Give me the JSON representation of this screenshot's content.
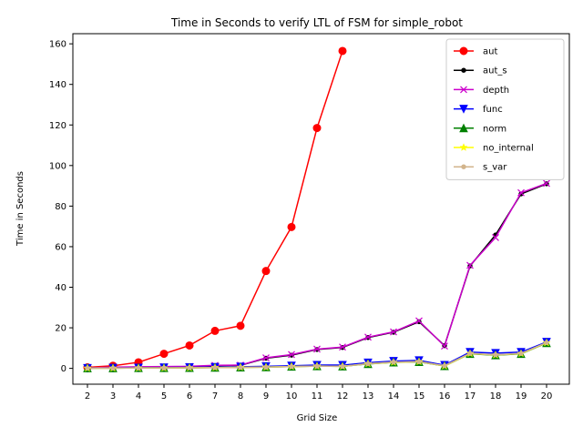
{
  "chart_data": {
    "type": "line",
    "title": "Time in Seconds to verify LTL of FSM for simple_robot",
    "xlabel": "Grid Size",
    "ylabel": "Time in Seconds",
    "categories": [
      "2",
      "3",
      "4",
      "5",
      "6",
      "7",
      "8",
      "9",
      "10",
      "11",
      "12",
      "13",
      "14",
      "15",
      "16",
      "17",
      "18",
      "19",
      "20"
    ],
    "ylim": [
      -7.8,
      165
    ],
    "yticks": [
      0,
      20,
      40,
      60,
      80,
      100,
      120,
      140,
      160
    ],
    "legend_position": "top-right",
    "grid": false,
    "series": [
      {
        "name": "aut",
        "color": "#ff0000",
        "marker": "circle",
        "values": [
          0.5,
          1.3,
          3.0,
          7.2,
          11.3,
          18.5,
          21.0,
          48.0,
          69.7,
          118.5,
          156.5,
          null,
          null,
          null,
          null,
          null,
          null,
          null,
          null
        ]
      },
      {
        "name": "aut_s",
        "color": "#000000",
        "marker": "point",
        "values": [
          0.2,
          0.5,
          0.6,
          0.7,
          0.9,
          1.3,
          1.5,
          5.0,
          6.5,
          9.3,
          10.3,
          15.2,
          17.8,
          23.0,
          11.2,
          50.5,
          65.8,
          86.0,
          91.0
        ]
      },
      {
        "name": "depth",
        "color": "#cc00cc",
        "marker": "x",
        "values": [
          0.2,
          0.6,
          0.8,
          0.9,
          1.0,
          1.5,
          1.6,
          5.2,
          6.8,
          9.5,
          10.5,
          15.4,
          18.0,
          23.4,
          11.0,
          50.8,
          64.5,
          86.6,
          91.2
        ]
      },
      {
        "name": "func",
        "color": "#0000ff",
        "marker": "triangle-down",
        "values": [
          0.1,
          0.2,
          0.3,
          0.4,
          0.5,
          0.6,
          0.8,
          1.0,
          1.3,
          1.6,
          1.6,
          2.8,
          3.6,
          3.9,
          1.6,
          8.0,
          7.5,
          8.0,
          13.0
        ]
      },
      {
        "name": "norm",
        "color": "#008000",
        "marker": "triangle-up",
        "values": [
          0.1,
          0.1,
          0.2,
          0.2,
          0.3,
          0.4,
          0.5,
          0.6,
          0.9,
          1.1,
          1.0,
          2.2,
          3.0,
          3.2,
          1.2,
          7.2,
          6.5,
          7.2,
          12.5
        ]
      },
      {
        "name": "no_internal",
        "color": "#ffff00",
        "marker": "star",
        "values": [
          0.1,
          0.1,
          0.2,
          0.2,
          0.3,
          0.4,
          0.5,
          0.6,
          0.9,
          1.1,
          1.0,
          2.3,
          3.0,
          3.3,
          1.2,
          7.3,
          6.6,
          7.3,
          12.6
        ]
      },
      {
        "name": "s_var",
        "color": "#d2b48c",
        "marker": "point",
        "values": [
          0.1,
          0.1,
          0.2,
          0.2,
          0.3,
          0.4,
          0.5,
          0.6,
          0.9,
          1.1,
          1.0,
          2.3,
          3.1,
          3.3,
          1.3,
          7.4,
          6.7,
          7.4,
          12.7
        ]
      }
    ]
  }
}
